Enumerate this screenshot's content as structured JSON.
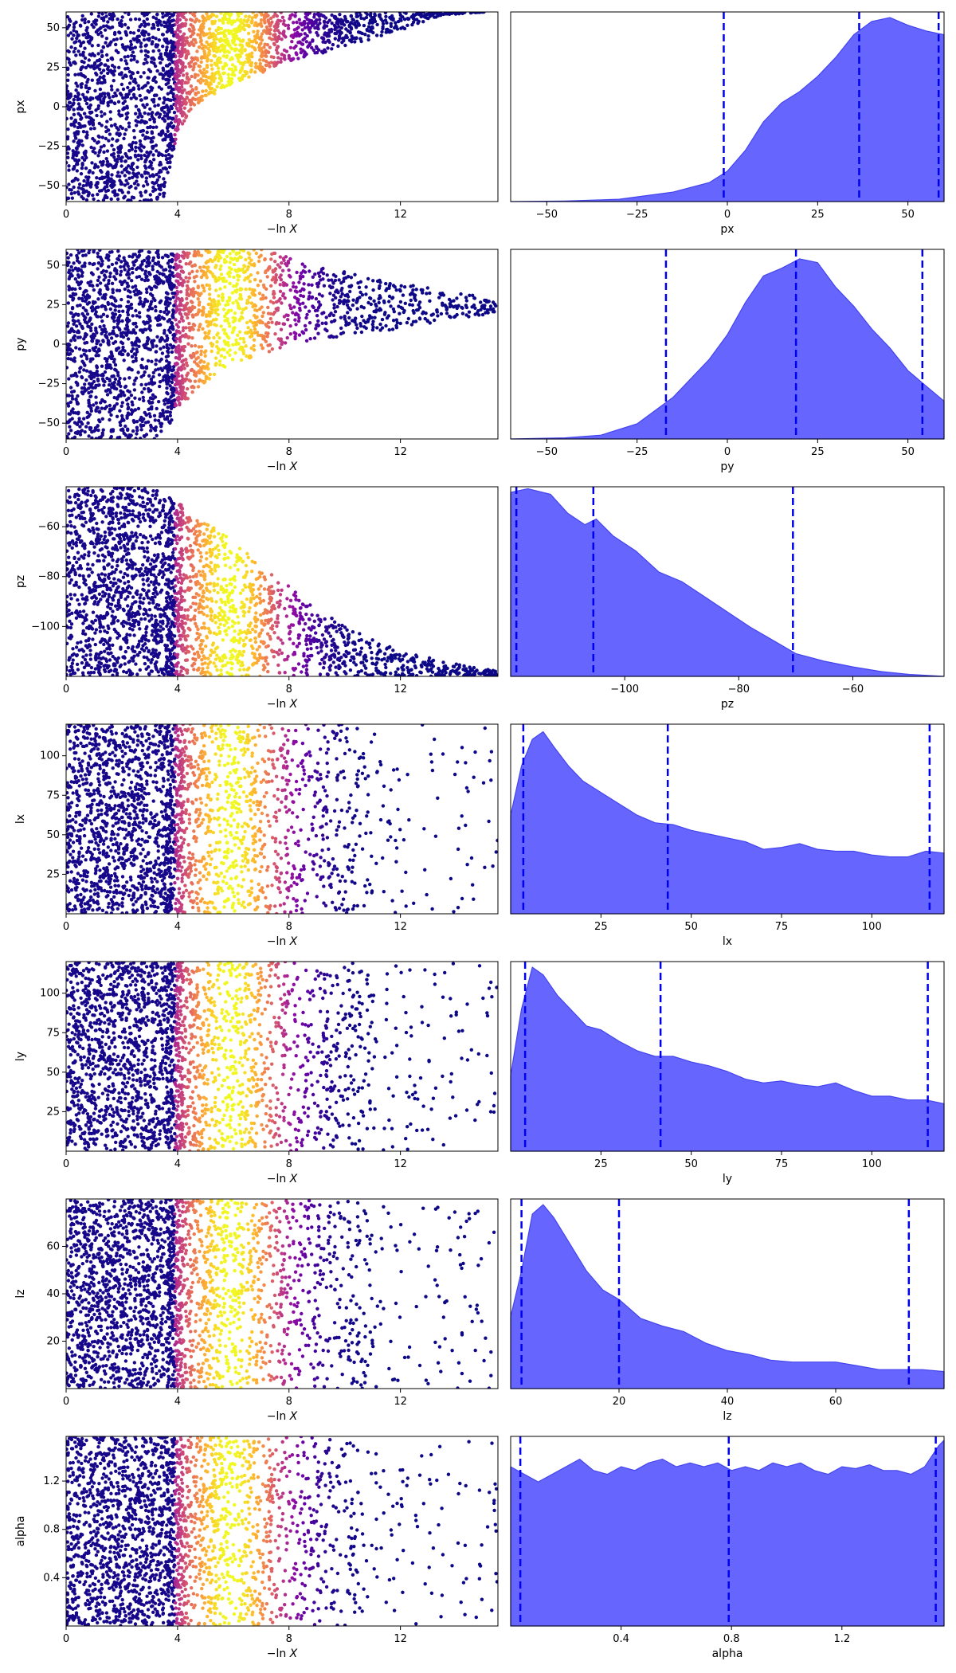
{
  "figure": {
    "xlabel_left_prefix": "−ln",
    "xlabel_left_var": "X"
  },
  "colors": {
    "kde_fill": "#6666ff",
    "kde_edge": "#4444ee",
    "quantile_line": "#0000ee",
    "scatter_colormap": "plasma"
  },
  "chart_data": [
    {
      "param": "px",
      "trace": {
        "type": "scatter",
        "ylabel": "px",
        "xlim": [
          0,
          15.5
        ],
        "ylim": [
          -60,
          60
        ],
        "xticks": [
          0,
          4,
          8,
          12
        ],
        "yticks": [
          -50,
          -25,
          0,
          25,
          50
        ],
        "bright_center": 5.9,
        "envelope": [
          [
            0,
            -60
          ],
          [
            3.5,
            -60
          ],
          [
            4,
            -15
          ],
          [
            5,
            5
          ],
          [
            6,
            15
          ],
          [
            8,
            28
          ],
          [
            10,
            38
          ],
          [
            12,
            48
          ],
          [
            13.5,
            58
          ],
          [
            15,
            60
          ]
        ],
        "upper": [
          [
            0,
            60
          ],
          [
            15.5,
            60
          ]
        ]
      },
      "kde": {
        "type": "area",
        "xlabel": "px",
        "xlim": [
          -60,
          60
        ],
        "xticks": [
          -50,
          -25,
          0,
          25,
          50
        ],
        "quantiles": [
          -1,
          36.5,
          58.5
        ],
        "density": [
          [
            -60,
            0
          ],
          [
            -45,
            0.003
          ],
          [
            -30,
            0.012
          ],
          [
            -15,
            0.05
          ],
          [
            -5,
            0.1
          ],
          [
            0,
            0.16
          ],
          [
            5,
            0.27
          ],
          [
            10,
            0.42
          ],
          [
            15,
            0.52
          ],
          [
            20,
            0.58
          ],
          [
            25,
            0.66
          ],
          [
            30,
            0.76
          ],
          [
            35,
            0.88
          ],
          [
            40,
            0.95
          ],
          [
            45,
            0.97
          ],
          [
            50,
            0.93
          ],
          [
            55,
            0.9
          ],
          [
            60,
            0.88
          ]
        ]
      }
    },
    {
      "param": "py",
      "trace": {
        "type": "scatter",
        "ylabel": "py",
        "xlim": [
          0,
          15.5
        ],
        "ylim": [
          -60,
          60
        ],
        "xticks": [
          0,
          4,
          8,
          12
        ],
        "yticks": [
          -50,
          -25,
          0,
          25,
          50
        ],
        "bright_center": 5.9,
        "envelope": [
          [
            0,
            -60
          ],
          [
            3.5,
            -60
          ],
          [
            4,
            -40
          ],
          [
            5,
            -25
          ],
          [
            6,
            -12
          ],
          [
            8,
            -2
          ],
          [
            10,
            5
          ],
          [
            12,
            10
          ],
          [
            14,
            16
          ],
          [
            15.5,
            20
          ]
        ],
        "upper": [
          [
            0,
            60
          ],
          [
            7,
            60
          ],
          [
            9,
            50
          ],
          [
            11,
            42
          ],
          [
            13,
            36
          ],
          [
            15.5,
            28
          ]
        ]
      },
      "kde": {
        "type": "area",
        "xlabel": "py",
        "xlim": [
          -60,
          60
        ],
        "xticks": [
          -50,
          -25,
          0,
          25,
          50
        ],
        "quantiles": [
          -17,
          19,
          54
        ],
        "density": [
          [
            -60,
            0
          ],
          [
            -45,
            0.006
          ],
          [
            -35,
            0.02
          ],
          [
            -25,
            0.08
          ],
          [
            -15,
            0.22
          ],
          [
            -5,
            0.42
          ],
          [
            0,
            0.55
          ],
          [
            5,
            0.72
          ],
          [
            10,
            0.86
          ],
          [
            15,
            0.9
          ],
          [
            20,
            0.95
          ],
          [
            25,
            0.93
          ],
          [
            30,
            0.8
          ],
          [
            35,
            0.7
          ],
          [
            40,
            0.58
          ],
          [
            45,
            0.48
          ],
          [
            50,
            0.36
          ],
          [
            55,
            0.28
          ],
          [
            60,
            0.2
          ]
        ]
      }
    },
    {
      "param": "pz",
      "trace": {
        "type": "scatter",
        "ylabel": "pz",
        "xlim": [
          0,
          15.5
        ],
        "ylim": [
          -120,
          -44
        ],
        "xticks": [
          0,
          4,
          8,
          12
        ],
        "yticks": [
          -100,
          -80,
          -60
        ],
        "bright_center": 5.9,
        "envelope": [
          [
            0,
            -120
          ],
          [
            15.5,
            -120
          ]
        ],
        "upper": [
          [
            0,
            -44
          ],
          [
            3,
            -44
          ],
          [
            4,
            -50
          ],
          [
            5,
            -58
          ],
          [
            6,
            -66
          ],
          [
            8,
            -84
          ],
          [
            10,
            -100
          ],
          [
            12,
            -110
          ],
          [
            14,
            -115
          ],
          [
            15.5,
            -118
          ]
        ]
      },
      "kde": {
        "type": "area",
        "xlabel": "pz",
        "xlim": [
          -120,
          -44
        ],
        "xticks": [
          -100,
          -80,
          -60
        ],
        "quantiles": [
          -119,
          -105.5,
          -70.5
        ],
        "density": [
          [
            -120,
            0.97
          ],
          [
            -117,
            0.99
          ],
          [
            -113,
            0.96
          ],
          [
            -110,
            0.86
          ],
          [
            -107,
            0.8
          ],
          [
            -105,
            0.83
          ],
          [
            -102,
            0.74
          ],
          [
            -98,
            0.66
          ],
          [
            -94,
            0.55
          ],
          [
            -90,
            0.5
          ],
          [
            -86,
            0.42
          ],
          [
            -82,
            0.34
          ],
          [
            -78,
            0.26
          ],
          [
            -74,
            0.19
          ],
          [
            -70,
            0.12
          ],
          [
            -65,
            0.08
          ],
          [
            -60,
            0.05
          ],
          [
            -55,
            0.025
          ],
          [
            -50,
            0.01
          ],
          [
            -44,
            0
          ]
        ]
      }
    },
    {
      "param": "lx",
      "trace": {
        "type": "scatter",
        "ylabel": "lx",
        "xlim": [
          0,
          15.5
        ],
        "ylim": [
          0,
          120
        ],
        "xticks": [
          0,
          4,
          8,
          12
        ],
        "yticks": [
          25,
          50,
          75,
          100
        ],
        "bright_center": 5.9,
        "envelope": [
          [
            0,
            0
          ],
          [
            15.5,
            0
          ]
        ],
        "upper": [
          [
            0,
            120
          ],
          [
            15.5,
            120
          ]
        ],
        "sparse_after": 11
      },
      "kde": {
        "type": "area",
        "xlabel": "lx",
        "xlim": [
          0,
          120
        ],
        "xticks": [
          25,
          50,
          75,
          100
        ],
        "quantiles": [
          3.5,
          43.5,
          116
        ],
        "density": [
          [
            0,
            0.52
          ],
          [
            3,
            0.78
          ],
          [
            6,
            0.92
          ],
          [
            9,
            0.96
          ],
          [
            12,
            0.88
          ],
          [
            16,
            0.78
          ],
          [
            20,
            0.7
          ],
          [
            25,
            0.64
          ],
          [
            30,
            0.58
          ],
          [
            35,
            0.52
          ],
          [
            40,
            0.48
          ],
          [
            45,
            0.47
          ],
          [
            50,
            0.44
          ],
          [
            55,
            0.42
          ],
          [
            60,
            0.4
          ],
          [
            65,
            0.38
          ],
          [
            70,
            0.34
          ],
          [
            75,
            0.35
          ],
          [
            80,
            0.37
          ],
          [
            85,
            0.34
          ],
          [
            90,
            0.33
          ],
          [
            95,
            0.33
          ],
          [
            100,
            0.31
          ],
          [
            105,
            0.3
          ],
          [
            110,
            0.3
          ],
          [
            115,
            0.33
          ],
          [
            120,
            0.32
          ]
        ]
      }
    },
    {
      "param": "ly",
      "trace": {
        "type": "scatter",
        "ylabel": "ly",
        "xlim": [
          0,
          15.5
        ],
        "ylim": [
          0,
          120
        ],
        "xticks": [
          0,
          4,
          8,
          12
        ],
        "yticks": [
          25,
          50,
          75,
          100
        ],
        "bright_center": 5.9,
        "envelope": [
          [
            0,
            0
          ],
          [
            15.5,
            0
          ]
        ],
        "upper": [
          [
            0,
            120
          ],
          [
            15.5,
            120
          ]
        ],
        "sparse_after": 11
      },
      "kde": {
        "type": "area",
        "xlabel": "ly",
        "xlim": [
          0,
          120
        ],
        "xticks": [
          25,
          50,
          75,
          100
        ],
        "quantiles": [
          4,
          41.5,
          115.5
        ],
        "density": [
          [
            0,
            0.4
          ],
          [
            3,
            0.75
          ],
          [
            6,
            0.97
          ],
          [
            9,
            0.93
          ],
          [
            13,
            0.82
          ],
          [
            17,
            0.74
          ],
          [
            21,
            0.66
          ],
          [
            25,
            0.64
          ],
          [
            30,
            0.58
          ],
          [
            35,
            0.53
          ],
          [
            40,
            0.5
          ],
          [
            45,
            0.5
          ],
          [
            50,
            0.47
          ],
          [
            55,
            0.45
          ],
          [
            60,
            0.42
          ],
          [
            65,
            0.38
          ],
          [
            70,
            0.36
          ],
          [
            75,
            0.37
          ],
          [
            80,
            0.35
          ],
          [
            85,
            0.34
          ],
          [
            90,
            0.36
          ],
          [
            95,
            0.32
          ],
          [
            100,
            0.29
          ],
          [
            105,
            0.29
          ],
          [
            110,
            0.27
          ],
          [
            115,
            0.27
          ],
          [
            120,
            0.25
          ]
        ]
      }
    },
    {
      "param": "lz",
      "trace": {
        "type": "scatter",
        "ylabel": "lz",
        "xlim": [
          0,
          15.5
        ],
        "ylim": [
          0,
          80
        ],
        "xticks": [
          0,
          4,
          8,
          12
        ],
        "yticks": [
          20,
          40,
          60
        ],
        "bright_center": 5.9,
        "envelope": [
          [
            0,
            0
          ],
          [
            15.5,
            0
          ]
        ],
        "upper": [
          [
            0,
            80
          ],
          [
            15.5,
            80
          ]
        ],
        "sparse_after": 11
      },
      "kde": {
        "type": "area",
        "xlabel": "lz",
        "xlim": [
          0,
          80
        ],
        "xticks": [
          20,
          40,
          60
        ],
        "quantiles": [
          2,
          20,
          73.5
        ],
        "density": [
          [
            0,
            0.38
          ],
          [
            2,
            0.62
          ],
          [
            4,
            0.92
          ],
          [
            6,
            0.97
          ],
          [
            8,
            0.9
          ],
          [
            11,
            0.76
          ],
          [
            14,
            0.62
          ],
          [
            17,
            0.52
          ],
          [
            20,
            0.47
          ],
          [
            24,
            0.37
          ],
          [
            28,
            0.33
          ],
          [
            32,
            0.3
          ],
          [
            36,
            0.24
          ],
          [
            40,
            0.2
          ],
          [
            44,
            0.18
          ],
          [
            48,
            0.15
          ],
          [
            52,
            0.14
          ],
          [
            56,
            0.14
          ],
          [
            60,
            0.14
          ],
          [
            64,
            0.12
          ],
          [
            68,
            0.1
          ],
          [
            72,
            0.1
          ],
          [
            76,
            0.1
          ],
          [
            80,
            0.09
          ]
        ]
      }
    },
    {
      "param": "alpha",
      "trace": {
        "type": "scatter",
        "ylabel": "alpha",
        "xlim": [
          0,
          15.5
        ],
        "ylim": [
          0,
          1.57
        ],
        "xticks": [
          0,
          4,
          8,
          12
        ],
        "yticks": [
          0.4,
          0.8,
          1.2
        ],
        "bright_center": 5.9,
        "envelope": [
          [
            0,
            0
          ],
          [
            15.5,
            0
          ]
        ],
        "upper": [
          [
            0,
            1.57
          ],
          [
            15.5,
            1.57
          ]
        ],
        "sparse_after": 10.5
      },
      "kde": {
        "type": "area",
        "xlabel": "alpha",
        "xlim": [
          0,
          1.57
        ],
        "xticks": [
          0.4,
          0.8,
          1.2
        ],
        "quantiles": [
          0.035,
          0.79,
          1.54
        ],
        "density": [
          [
            0,
            0.84
          ],
          [
            0.05,
            0.8
          ],
          [
            0.1,
            0.76
          ],
          [
            0.15,
            0.8
          ],
          [
            0.2,
            0.84
          ],
          [
            0.25,
            0.88
          ],
          [
            0.3,
            0.82
          ],
          [
            0.35,
            0.8
          ],
          [
            0.4,
            0.84
          ],
          [
            0.45,
            0.82
          ],
          [
            0.5,
            0.86
          ],
          [
            0.55,
            0.88
          ],
          [
            0.6,
            0.84
          ],
          [
            0.65,
            0.86
          ],
          [
            0.7,
            0.84
          ],
          [
            0.75,
            0.86
          ],
          [
            0.8,
            0.82
          ],
          [
            0.85,
            0.84
          ],
          [
            0.9,
            0.82
          ],
          [
            0.95,
            0.86
          ],
          [
            1.0,
            0.84
          ],
          [
            1.05,
            0.86
          ],
          [
            1.1,
            0.82
          ],
          [
            1.15,
            0.8
          ],
          [
            1.2,
            0.84
          ],
          [
            1.25,
            0.83
          ],
          [
            1.3,
            0.85
          ],
          [
            1.35,
            0.82
          ],
          [
            1.4,
            0.82
          ],
          [
            1.45,
            0.8
          ],
          [
            1.5,
            0.84
          ],
          [
            1.55,
            0.95
          ],
          [
            1.57,
            0.98
          ]
        ]
      }
    }
  ]
}
